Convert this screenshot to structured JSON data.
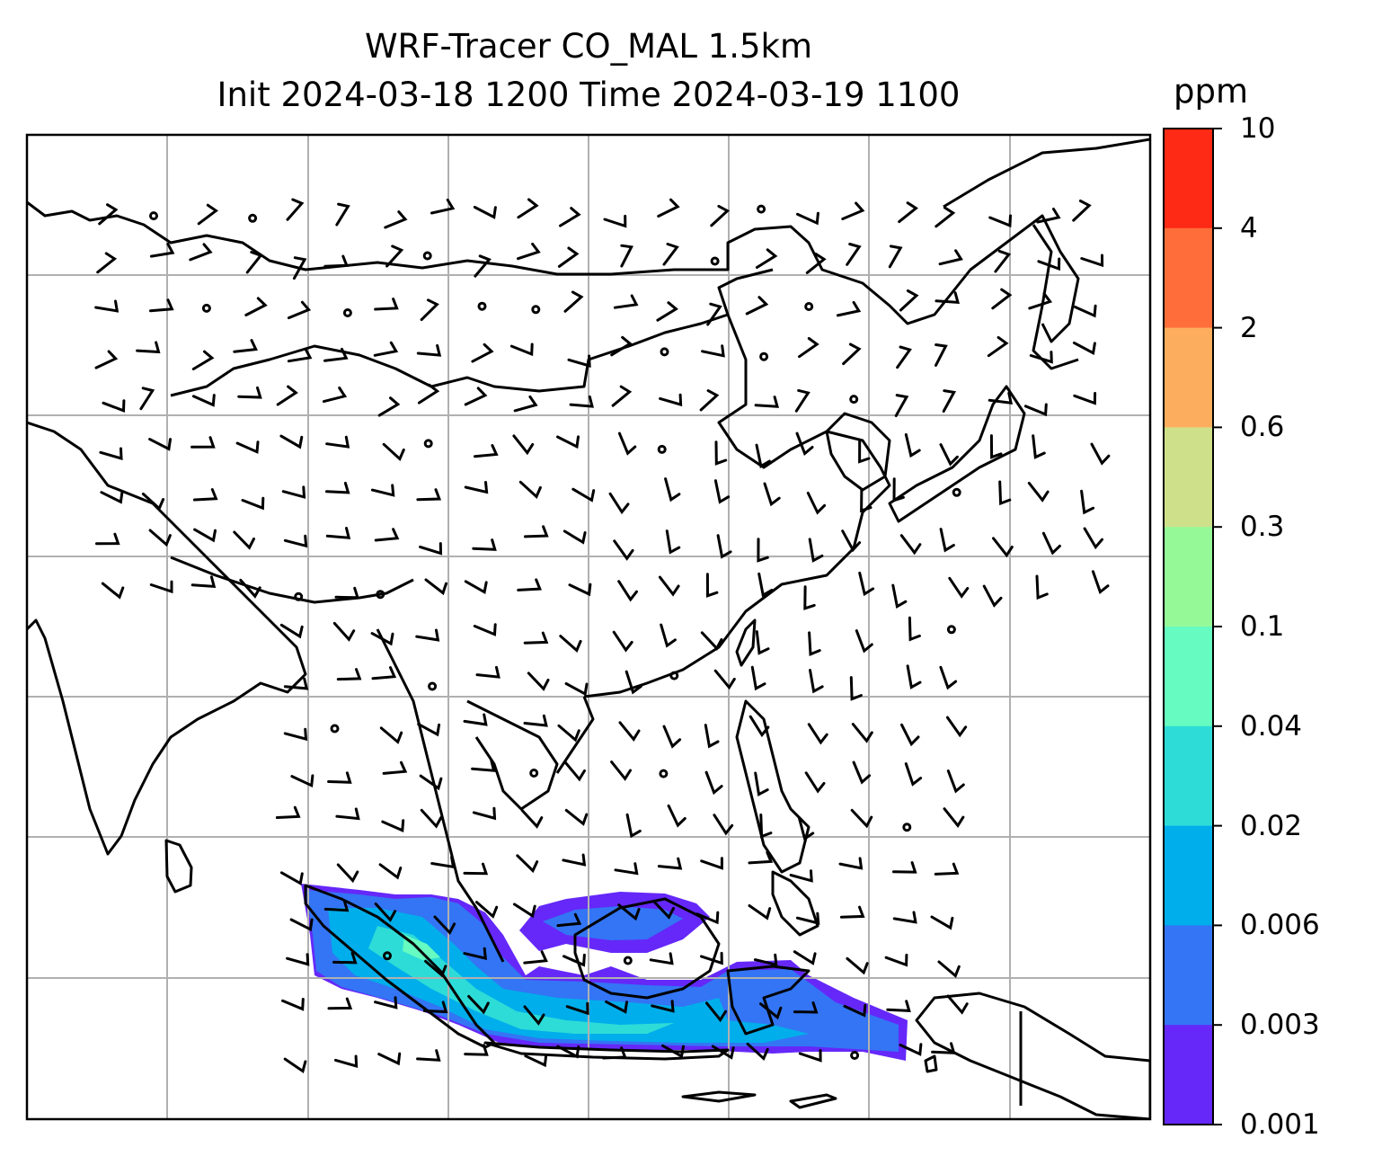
{
  "title": {
    "line1": "WRF-Tracer CO_MAL 1.5km",
    "line2": "Init 2024-03-18 1200 Time 2024-03-19 1100"
  },
  "colorbar": {
    "unit": "ppm",
    "ticks": [
      "10",
      "4",
      "2",
      "0.6",
      "0.3",
      "0.1",
      "0.04",
      "0.02",
      "0.006",
      "0.003",
      "0.001"
    ],
    "colors": [
      "#fe2a15",
      "#ff6e3a",
      "#fdad5e",
      "#cfe08a",
      "#96f997",
      "#65fbc1",
      "#2ddcd7",
      "#00aeeb",
      "#3375f4",
      "#6528f9"
    ]
  },
  "map": {
    "field": "CO_MAL tracer concentration (filled) with wind barbs",
    "gridlines": true
  }
}
